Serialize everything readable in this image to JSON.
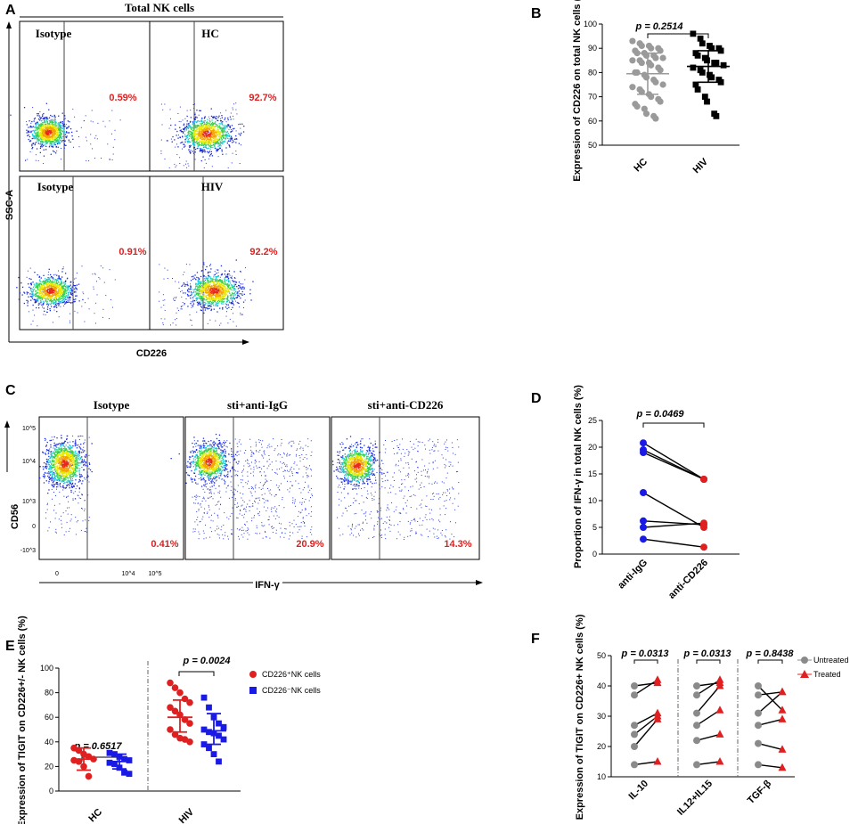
{
  "panel_labels": {
    "a": "A",
    "b": "B",
    "c": "C",
    "d": "D",
    "e": "E",
    "f": "F"
  },
  "panel_a": {
    "title": "Total NK cells",
    "y_axis": "SSC-A",
    "x_axis": "CD226",
    "plots": [
      {
        "label": "Isotype",
        "percent": "0.59%"
      },
      {
        "label": "HC",
        "percent": "92.7%"
      },
      {
        "label": "Isotype",
        "percent": "0.91%"
      },
      {
        "label": "HIV",
        "percent": "92.2%"
      }
    ]
  },
  "panel_c": {
    "y_axis": "CD56",
    "x_axis": "IFN-γ",
    "y_ticks": [
      "10^5",
      "10^4",
      "10^3",
      "0",
      "-10^3"
    ],
    "x_ticks": [
      "0",
      "10^4",
      "10^5"
    ],
    "plots": [
      {
        "label": "Isotype",
        "percent": "0.41%"
      },
      {
        "label": "sti+anti-IgG",
        "percent": "20.9%"
      },
      {
        "label": "sti+anti-CD226",
        "percent": "14.3%"
      }
    ]
  },
  "chart_data": [
    {
      "id": "B",
      "type": "scatter",
      "ylabel": "Expression of CD226 on total NK cells (%)",
      "ylim": [
        50,
        100
      ],
      "yticks": [
        50,
        60,
        70,
        80,
        90,
        100
      ],
      "categories": [
        "HC",
        "HIV"
      ],
      "p_text": "p = 0.2514",
      "series": [
        {
          "name": "HC",
          "color": "#9a9a9a",
          "marker": "circle",
          "mean": 79.5,
          "sd_low": 71,
          "sd_high": 88,
          "values": [
            93,
            92,
            91,
            91,
            90,
            90,
            89,
            89,
            88,
            88,
            87,
            87,
            86,
            86,
            85,
            85,
            84,
            84,
            83,
            82,
            81,
            80,
            80,
            79,
            78,
            77,
            76,
            75,
            74,
            73,
            72,
            71,
            70,
            69,
            68,
            67,
            66,
            65,
            63,
            62,
            61
          ]
        },
        {
          "name": "HIV",
          "color": "#000000",
          "marker": "square",
          "mean": 82.5,
          "sd_low": 76,
          "sd_high": 89,
          "values": [
            96,
            94,
            92,
            91,
            90,
            90,
            89,
            88,
            87,
            86,
            85,
            84,
            84,
            83,
            82,
            81,
            80,
            79,
            78,
            77,
            76,
            75,
            73,
            70,
            68,
            63,
            62
          ]
        }
      ]
    },
    {
      "id": "D",
      "type": "line",
      "ylabel": "Proportion of IFN-γ in total NK cells (%)",
      "ylim": [
        0,
        25
      ],
      "yticks": [
        0,
        5,
        10,
        15,
        20,
        25
      ],
      "categories": [
        "anti-IgG",
        "anti-CD226"
      ],
      "p_text": "p = 0.0469",
      "pairs": [
        [
          20.8,
          14.0
        ],
        [
          19.5,
          14.0
        ],
        [
          19.0,
          14.0
        ],
        [
          11.5,
          5.0
        ],
        [
          6.2,
          5.5
        ],
        [
          5.0,
          5.8
        ],
        [
          2.8,
          1.3
        ]
      ],
      "colors": [
        "#1a1ae6",
        "#e02020"
      ]
    },
    {
      "id": "E",
      "type": "scatter",
      "ylabel": "Expression of TIGIT on CD226+/- NK cells (%)",
      "ylim": [
        0,
        100
      ],
      "yticks": [
        0,
        20,
        40,
        60,
        80,
        100
      ],
      "categories": [
        "HC",
        "HIV"
      ],
      "p_texts": [
        "p = 0.6517",
        "p = 0.0024"
      ],
      "legend": [
        {
          "label": "CD226⁺NK cells",
          "color": "#e02020"
        },
        {
          "label": "CD226⁻NK cells",
          "color": "#1a1ae6"
        }
      ],
      "groups": [
        {
          "name": "HC",
          "pos": {
            "mean": 26,
            "sd_low": 17,
            "sd_high": 35,
            "values": [
              35,
              33,
              30,
              28,
              26,
              25,
              24,
              20,
              12
            ]
          },
          "neg": {
            "mean": 24,
            "sd_low": 18,
            "sd_high": 30,
            "values": [
              31,
              30,
              28,
              26,
              25,
              23,
              22,
              19,
              15,
              14
            ]
          }
        },
        {
          "name": "HIV",
          "pos": {
            "mean": 60,
            "sd_low": 48,
            "sd_high": 74,
            "values": [
              88,
              84,
              80,
              75,
              72,
              68,
              65,
              62,
              58,
              55,
              50,
              46,
              43,
              42,
              40
            ]
          },
          "neg": {
            "mean": 49,
            "sd_low": 38,
            "sd_high": 63,
            "values": [
              76,
              68,
              60,
              55,
              52,
              50,
              48,
              47,
              45,
              42,
              38,
              35,
              30,
              24
            ]
          }
        }
      ]
    },
    {
      "id": "F",
      "type": "line",
      "ylabel": "Expression of TIGIT on CD226+ NK cells (%)",
      "ylim": [
        10,
        50
      ],
      "yticks": [
        10,
        20,
        30,
        40,
        50
      ],
      "categories": [
        "IL-10",
        "IL12+IL15",
        "TGF-β"
      ],
      "p_texts": [
        "p = 0.0313",
        "p = 0.0313",
        "p = 0.8438"
      ],
      "legend": [
        {
          "label": "Untreated",
          "color": "#8a8a8a"
        },
        {
          "label": "Treated",
          "color": "#e02020"
        }
      ],
      "groups": [
        {
          "name": "IL-10",
          "pairs": [
            [
              40,
              41
            ],
            [
              37,
              42
            ],
            [
              27,
              31
            ],
            [
              24,
              30
            ],
            [
              20,
              29
            ],
            [
              14,
              15
            ]
          ]
        },
        {
          "name": "IL12+IL15",
          "pairs": [
            [
              40,
              41
            ],
            [
              37,
              42
            ],
            [
              31,
              40
            ],
            [
              27,
              32
            ],
            [
              22,
              24
            ],
            [
              14,
              15
            ]
          ]
        },
        {
          "name": "TGF-β",
          "pairs": [
            [
              40,
              32
            ],
            [
              37,
              38
            ],
            [
              31,
              38
            ],
            [
              27,
              29
            ],
            [
              21,
              19
            ],
            [
              14,
              13
            ]
          ]
        }
      ]
    }
  ]
}
